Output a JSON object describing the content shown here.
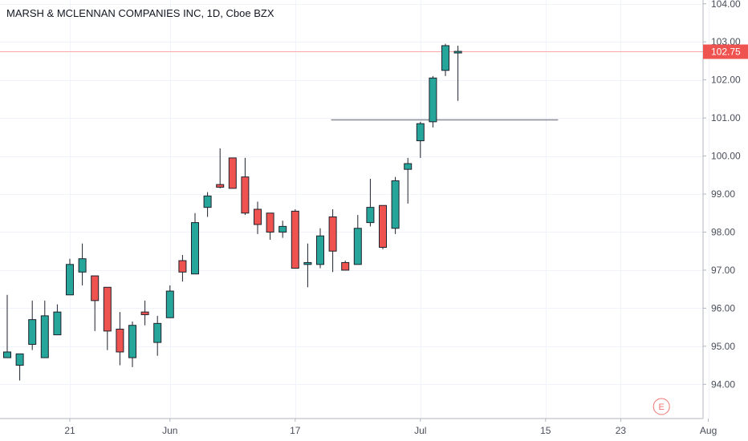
{
  "colors": {
    "up": "#26a69a",
    "down": "#ef5350",
    "wick": "#1e222d",
    "grid": "#f0f3fa",
    "last_price_line": "#f7a8a8",
    "last_price_tag": "#ef5350",
    "level_line": "#8a8a96",
    "earnings": "#f07373"
  },
  "chart_data": {
    "type": "candlestick",
    "title": "MARSH & MCLENNAN COMPANIES INC, 1D, Cboe BZX",
    "y_axis_position": "right",
    "ylim": [
      93.1,
      104.1
    ],
    "ytick_labels": [
      "94.00",
      "95.00",
      "96.00",
      "97.00",
      "98.00",
      "99.00",
      "100.00",
      "101.00",
      "102.00",
      "103.00",
      "104.00"
    ],
    "xtick_labels": [
      {
        "label": "21",
        "index": 5
      },
      {
        "label": "Jun",
        "index": 13
      },
      {
        "label": "17",
        "index": 23
      },
      {
        "label": "Jul",
        "index": 33
      },
      {
        "label": "15",
        "index": 43
      },
      {
        "label": "23",
        "index": 49
      },
      {
        "label": "Aug",
        "index": 56
      }
    ],
    "x_slots": 58,
    "candles": [
      {
        "o": 94.7,
        "h": 96.35,
        "l": 94.7,
        "c": 94.85
      },
      {
        "o": 94.5,
        "h": 94.8,
        "l": 94.1,
        "c": 94.8
      },
      {
        "o": 95.05,
        "h": 96.2,
        "l": 94.9,
        "c": 95.7
      },
      {
        "o": 94.7,
        "h": 96.2,
        "l": 94.7,
        "c": 95.8
      },
      {
        "o": 95.3,
        "h": 96.1,
        "l": 95.3,
        "c": 95.9
      },
      {
        "o": 96.35,
        "h": 97.3,
        "l": 96.35,
        "c": 97.15
      },
      {
        "o": 96.95,
        "h": 97.7,
        "l": 96.6,
        "c": 97.3
      },
      {
        "o": 96.85,
        "h": 96.85,
        "l": 95.4,
        "c": 96.2
      },
      {
        "o": 96.55,
        "h": 96.55,
        "l": 94.9,
        "c": 95.4
      },
      {
        "o": 95.45,
        "h": 95.9,
        "l": 94.5,
        "c": 94.85
      },
      {
        "o": 94.7,
        "h": 95.65,
        "l": 94.45,
        "c": 95.55
      },
      {
        "o": 95.9,
        "h": 96.2,
        "l": 95.55,
        "c": 95.83
      },
      {
        "o": 95.1,
        "h": 95.8,
        "l": 94.75,
        "c": 95.6
      },
      {
        "o": 95.75,
        "h": 96.6,
        "l": 95.75,
        "c": 96.45
      },
      {
        "o": 97.25,
        "h": 97.4,
        "l": 96.7,
        "c": 96.95
      },
      {
        "o": 96.9,
        "h": 98.5,
        "l": 96.9,
        "c": 98.25
      },
      {
        "o": 98.65,
        "h": 99.05,
        "l": 98.4,
        "c": 98.95
      },
      {
        "o": 99.25,
        "h": 100.2,
        "l": 99.15,
        "c": 99.18
      },
      {
        "o": 99.95,
        "h": 99.95,
        "l": 99.15,
        "c": 99.15
      },
      {
        "o": 99.45,
        "h": 99.95,
        "l": 98.45,
        "c": 98.5
      },
      {
        "o": 98.6,
        "h": 98.8,
        "l": 97.95,
        "c": 98.2
      },
      {
        "o": 98.5,
        "h": 98.5,
        "l": 97.8,
        "c": 98.0
      },
      {
        "o": 98.0,
        "h": 98.3,
        "l": 97.85,
        "c": 98.15
      },
      {
        "o": 98.55,
        "h": 98.6,
        "l": 97.05,
        "c": 97.05
      },
      {
        "o": 97.15,
        "h": 97.7,
        "l": 96.55,
        "c": 97.2
      },
      {
        "o": 97.15,
        "h": 98.1,
        "l": 97.05,
        "c": 97.9
      },
      {
        "o": 98.4,
        "h": 98.6,
        "l": 96.95,
        "c": 97.5
      },
      {
        "o": 97.2,
        "h": 97.25,
        "l": 97.0,
        "c": 97.0
      },
      {
        "o": 97.15,
        "h": 98.45,
        "l": 97.15,
        "c": 98.1
      },
      {
        "o": 98.25,
        "h": 99.4,
        "l": 98.15,
        "c": 98.65
      },
      {
        "o": 98.7,
        "h": 98.7,
        "l": 97.55,
        "c": 97.6
      },
      {
        "o": 98.1,
        "h": 99.45,
        "l": 97.95,
        "c": 99.35
      },
      {
        "o": 99.65,
        "h": 99.95,
        "l": 98.75,
        "c": 99.8
      },
      {
        "o": 100.4,
        "h": 100.9,
        "l": 99.95,
        "c": 100.85
      },
      {
        "o": 100.9,
        "h": 102.1,
        "l": 100.75,
        "c": 102.05
      },
      {
        "o": 102.25,
        "h": 102.95,
        "l": 102.1,
        "c": 102.9
      },
      {
        "o": 102.75,
        "h": 102.9,
        "l": 101.45,
        "c": 102.75
      }
    ],
    "last_price": {
      "value": 102.75,
      "label": "102.75"
    },
    "horizontal_level": {
      "value": 100.95,
      "from_index": 26,
      "to_index": 44
    },
    "earnings_marker": {
      "label": "E",
      "index": 52
    }
  }
}
